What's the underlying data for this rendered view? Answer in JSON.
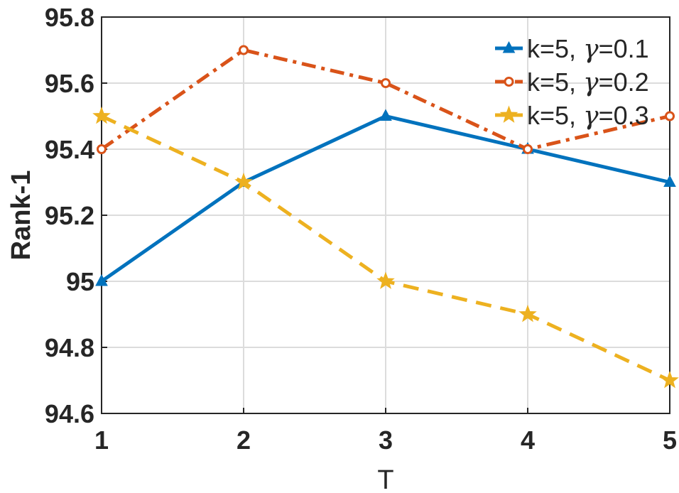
{
  "chart_data": {
    "type": "line",
    "xlabel": "T",
    "ylabel": "Rank-1",
    "x": [
      1,
      2,
      3,
      4,
      5
    ],
    "xlim": [
      1,
      5
    ],
    "ylim": [
      94.6,
      95.8
    ],
    "xticks": [
      "1",
      "2",
      "3",
      "4",
      "5"
    ],
    "yticks": [
      "94.6",
      "94.8",
      "95",
      "95.2",
      "95.4",
      "95.6",
      "95.8"
    ],
    "grid": true,
    "legend_position": "top-right",
    "series": [
      {
        "name": "k=5, γ=0.1",
        "name_prefix": "k=5, ",
        "name_symbol": "γ",
        "name_suffix": "=0.1",
        "values": [
          95.0,
          95.3,
          95.5,
          95.4,
          95.3
        ],
        "color": "#0072BD",
        "marker": "triangle",
        "line_style": "solid"
      },
      {
        "name": "k=5, γ=0.2",
        "name_prefix": "k=5, ",
        "name_symbol": "γ",
        "name_suffix": "=0.2",
        "values": [
          95.4,
          95.7,
          95.6,
          95.4,
          95.5
        ],
        "color": "#D95319",
        "marker": "circle",
        "line_style": "dash-dot"
      },
      {
        "name": "k=5, γ=0.3",
        "name_prefix": "k=5, ",
        "name_symbol": "γ",
        "name_suffix": "=0.3",
        "values": [
          95.5,
          95.3,
          95.0,
          94.9,
          94.7
        ],
        "color": "#EDB120",
        "marker": "star",
        "line_style": "dashed"
      }
    ]
  }
}
